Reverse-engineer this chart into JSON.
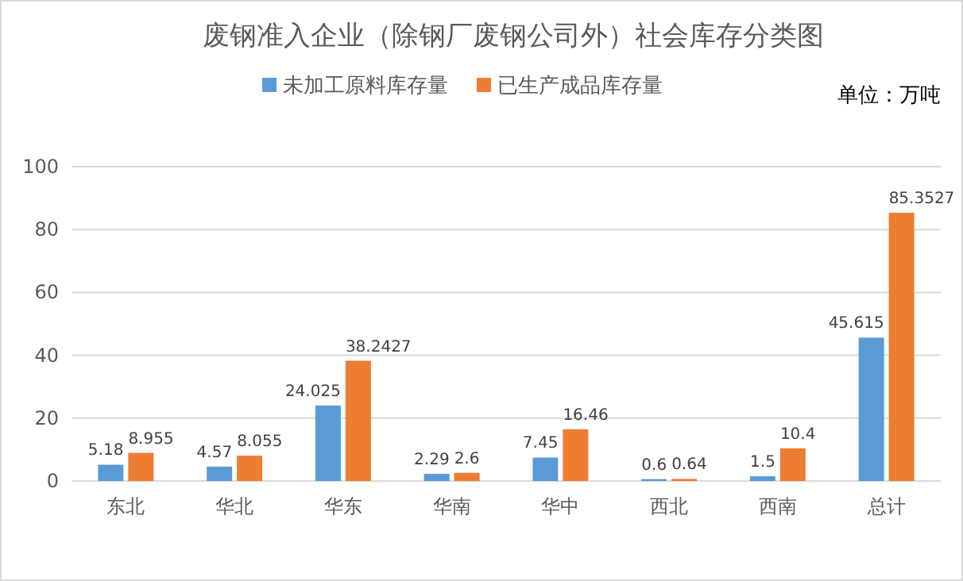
{
  "chart_data": {
    "type": "bar",
    "title": "废钢准入企业（除钢厂废钢公司外）社会库存分类图",
    "annotations": [
      "单位：万吨"
    ],
    "categories": [
      "东北",
      "华北",
      "华东",
      "华南",
      "华中",
      "西北",
      "西南",
      "总计"
    ],
    "series": [
      {
        "name": "未加工原料库存量",
        "color": "#5b9bd5",
        "values": [
          5.18,
          4.57,
          24.025,
          2.29,
          7.45,
          0.6,
          1.5,
          45.615
        ]
      },
      {
        "name": "已生产成品库存量",
        "color": "#ed7d31",
        "values": [
          8.955,
          8.055,
          38.2427,
          2.6,
          16.46,
          0.64,
          10.4,
          85.3527
        ]
      }
    ],
    "ylim": [
      0,
      100
    ],
    "yticks": [
      0,
      20,
      40,
      60,
      80,
      100
    ],
    "grid": "y",
    "legend": "top",
    "data_labels": true
  }
}
